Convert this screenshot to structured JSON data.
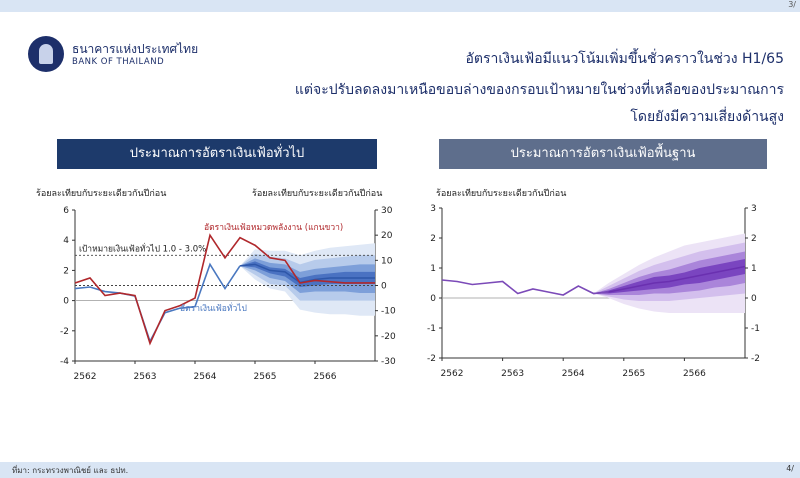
{
  "slide": {
    "top_page": "3/",
    "bank_name_th": "ธนาคารแห่งประเทศไทย",
    "bank_name_en": "BANK OF THAILAND",
    "title_lines": [
      "อัตราเงินเฟ้อมีแนวโน้มเพิ่มขึ้นชั่วคราวในช่วง H1/65",
      "แต่จะปรับลดลงมาเหนือขอบล่างของกรอบเป้าหมายในช่วงที่เหลือของประมาณการ",
      "โดยยังมีความเสี่ยงด้านสูง"
    ],
    "footer_source": "ที่มา: กระทรวงพาณิชย์ และ ธปท.",
    "footer_page": "4/"
  },
  "colors": {
    "navy": "#1d3a6b",
    "headline_line": "#4a78c0",
    "energy_line": "#b0282c",
    "core_line": "#7b4ab8",
    "fan_blue": [
      "#dfe8f6",
      "#b7cbeb",
      "#7d9fd9",
      "#4a72c2"
    ],
    "fan_purple": [
      "#ece3f6",
      "#d3bfed",
      "#aa85da",
      "#7a45c0"
    ]
  },
  "chart_data": [
    {
      "type": "line",
      "title": "ประมาณการอัตราเงินเฟ้อทั่วไป",
      "ylabel_left": "ร้อยละเทียบกับระยะเดียวกันปีก่อน",
      "ylabel_right": "ร้อยละเทียบกับระยะเดียวกันปีก่อน",
      "ylim_left": [
        -4,
        6
      ],
      "yticks_left": [
        -4,
        -2,
        0,
        2,
        4,
        6
      ],
      "ylim_right": [
        -30,
        30
      ],
      "yticks_right": [
        -30,
        -20,
        -10,
        0,
        10,
        20,
        30
      ],
      "xlim": [
        0,
        20
      ],
      "x_ticks": [
        {
          "x": 0,
          "label": "2562"
        },
        {
          "x": 4,
          "label": "2563"
        },
        {
          "x": 8,
          "label": "2564"
        },
        {
          "x": 12,
          "label": "2565"
        },
        {
          "x": 16,
          "label": "2566"
        }
      ],
      "target_band": {
        "label": "เป้าหมายเงินเฟ้อทั่วไป 1.0 - 3.0%",
        "low": 1.0,
        "high": 3.0
      },
      "series": [
        {
          "name": "อัตราเงินเฟ้อทั่วไป",
          "axis": "left",
          "x": [
            0,
            1,
            2,
            3,
            4,
            5,
            6,
            7,
            8,
            9,
            10,
            11
          ],
          "y": [
            0.8,
            0.9,
            0.6,
            0.5,
            0.3,
            -2.7,
            -0.8,
            -0.5,
            -0.4,
            2.4,
            0.8,
            2.3
          ]
        },
        {
          "name": "อัตราเงินเฟ้อหมวดพลังงาน (แกนขวา)",
          "axis": "right",
          "x": [
            0,
            1,
            2,
            3,
            4,
            5,
            6,
            7,
            8,
            9,
            10,
            11,
            12,
            13,
            14,
            15,
            16,
            17,
            18,
            19,
            20
          ],
          "y": [
            1,
            3,
            -4,
            -3,
            -4,
            -23,
            -10,
            -8,
            -5,
            20,
            11,
            19,
            16,
            11,
            10,
            1,
            2,
            1.5,
            1,
            1,
            1
          ]
        }
      ],
      "fan": {
        "axis": "left",
        "x": [
          11,
          12,
          13,
          14,
          15,
          16,
          17,
          18,
          19,
          20
        ],
        "center": [
          2.3,
          2.4,
          2.0,
          1.9,
          1.2,
          1.4,
          1.5,
          1.5,
          1.5,
          1.5
        ],
        "bands": [
          {
            "low": [
              2.3,
              1.4,
              0.8,
              0.6,
              -0.6,
              -0.8,
              -0.9,
              -0.9,
              -1.0,
              -1.0
            ],
            "high": [
              2.3,
              3.4,
              3.3,
              3.3,
              3.0,
              3.3,
              3.5,
              3.6,
              3.7,
              3.8
            ]
          },
          {
            "low": [
              2.3,
              1.7,
              1.1,
              1.0,
              0.0,
              0.0,
              0.0,
              0.0,
              0.0,
              0.0
            ],
            "high": [
              2.3,
              3.1,
              2.9,
              2.8,
              2.4,
              2.7,
              2.8,
              2.9,
              3.0,
              3.0
            ]
          },
          {
            "low": [
              2.3,
              2.0,
              1.5,
              1.3,
              0.5,
              0.6,
              0.6,
              0.6,
              0.5,
              0.5
            ],
            "high": [
              2.3,
              2.8,
              2.5,
              2.4,
              1.9,
              2.1,
              2.2,
              2.3,
              2.4,
              2.4
            ]
          },
          {
            "low": [
              2.3,
              2.2,
              1.8,
              1.6,
              0.9,
              1.0,
              1.1,
              1.1,
              1.1,
              1.1
            ],
            "high": [
              2.3,
              2.6,
              2.2,
              2.1,
              1.5,
              1.7,
              1.8,
              1.9,
              1.9,
              1.9
            ]
          }
        ]
      }
    },
    {
      "type": "line",
      "title": "ประมาณการอัตราเงินเฟ้อพื้นฐาน",
      "ylabel_left": "ร้อยละเทียบกับระยะเดียวกันปีก่อน",
      "ylim_left": [
        -2,
        3
      ],
      "yticks_left": [
        -2,
        -1,
        0,
        1,
        2,
        3
      ],
      "ylim_right": [
        -2,
        3
      ],
      "yticks_right": [
        -2,
        -1,
        0,
        1,
        2,
        3
      ],
      "xlim": [
        0,
        20
      ],
      "x_ticks": [
        {
          "x": 0,
          "label": "2562"
        },
        {
          "x": 4,
          "label": "2563"
        },
        {
          "x": 8,
          "label": "2564"
        },
        {
          "x": 12,
          "label": "2565"
        },
        {
          "x": 16,
          "label": "2566"
        }
      ],
      "series": [
        {
          "name": "",
          "axis": "left",
          "x": [
            0,
            1,
            2,
            3,
            4,
            5,
            6,
            7,
            8,
            9,
            10,
            11
          ],
          "y": [
            0.6,
            0.55,
            0.45,
            0.5,
            0.55,
            0.15,
            0.3,
            0.2,
            0.1,
            0.4,
            0.15,
            0.2
          ]
        }
      ],
      "fan": {
        "axis": "left",
        "x": [
          10,
          11,
          12,
          13,
          14,
          15,
          16,
          17,
          18,
          19,
          20
        ],
        "center": [
          0.15,
          0.2,
          0.3,
          0.4,
          0.5,
          0.55,
          0.65,
          0.75,
          0.85,
          0.95,
          1.05
        ],
        "bands": [
          {
            "low": [
              0.15,
              0.0,
              -0.2,
              -0.35,
              -0.45,
              -0.5,
              -0.5,
              -0.5,
              -0.5,
              -0.5,
              -0.5
            ],
            "high": [
              0.15,
              0.5,
              0.8,
              1.1,
              1.35,
              1.55,
              1.75,
              1.85,
              1.95,
              2.05,
              2.15
            ]
          },
          {
            "low": [
              0.15,
              0.05,
              -0.05,
              -0.1,
              -0.1,
              -0.1,
              -0.05,
              0.0,
              0.05,
              0.1,
              0.15
            ],
            "high": [
              0.15,
              0.4,
              0.65,
              0.9,
              1.1,
              1.25,
              1.4,
              1.55,
              1.65,
              1.75,
              1.85
            ]
          },
          {
            "low": [
              0.15,
              0.1,
              0.1,
              0.1,
              0.15,
              0.15,
              0.2,
              0.25,
              0.35,
              0.4,
              0.5
            ],
            "high": [
              0.15,
              0.3,
              0.5,
              0.7,
              0.85,
              0.95,
              1.1,
              1.25,
              1.35,
              1.45,
              1.55
            ]
          },
          {
            "low": [
              0.15,
              0.15,
              0.2,
              0.25,
              0.3,
              0.35,
              0.45,
              0.5,
              0.6,
              0.7,
              0.8
            ],
            "high": [
              0.15,
              0.25,
              0.4,
              0.55,
              0.7,
              0.75,
              0.85,
              1.0,
              1.1,
              1.2,
              1.3
            ]
          }
        ]
      }
    }
  ]
}
